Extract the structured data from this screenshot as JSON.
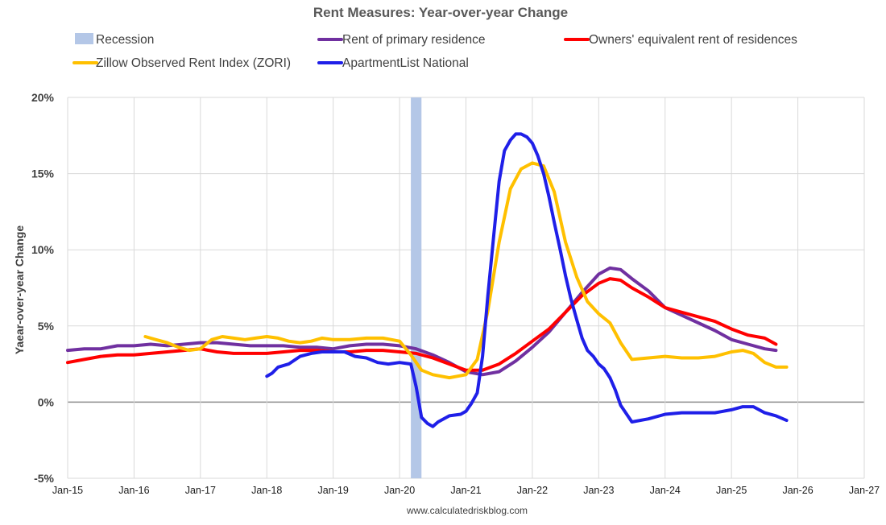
{
  "chart_data": {
    "type": "line",
    "title": "Rent Measures: Year-over-year Change",
    "ylabel": "Yaear-over-year Change",
    "xlabel": "",
    "source": "www.calculatedriskblog.com",
    "ylim": [
      -5,
      20
    ],
    "yticks": [
      20,
      15,
      10,
      5,
      0,
      -5
    ],
    "ytick_labels": [
      "20%",
      "15%",
      "10%",
      "5%",
      "0%",
      "-5%"
    ],
    "x_tick_labels": [
      "Jan-15",
      "Jan-16",
      "Jan-17",
      "Jan-18",
      "Jan-19",
      "Jan-20",
      "Jan-21",
      "Jan-22",
      "Jan-23",
      "Jan-24",
      "Jan-25",
      "Jan-26",
      "Jan-27"
    ],
    "xlim": [
      2015.0,
      2027.0
    ],
    "grid": true,
    "legend_position": "top",
    "recession": {
      "name": "Recession",
      "start": 2020.17,
      "end": 2020.33,
      "color": "#b4c7e7"
    },
    "series": [
      {
        "name": "Rent of primary residence",
        "color": "#7030a0",
        "x": [
          2015.0,
          2015.25,
          2015.5,
          2015.75,
          2016.0,
          2016.25,
          2016.5,
          2016.75,
          2017.0,
          2017.25,
          2017.5,
          2017.75,
          2018.0,
          2018.25,
          2018.5,
          2018.75,
          2019.0,
          2019.25,
          2019.5,
          2019.75,
          2020.0,
          2020.25,
          2020.5,
          2020.75,
          2021.0,
          2021.25,
          2021.5,
          2021.75,
          2022.0,
          2022.25,
          2022.5,
          2022.75,
          2023.0,
          2023.17,
          2023.33,
          2023.5,
          2023.75,
          2024.0,
          2024.25,
          2024.5,
          2024.75,
          2025.0,
          2025.25,
          2025.5,
          2025.67
        ],
        "values": [
          3.4,
          3.5,
          3.5,
          3.7,
          3.7,
          3.8,
          3.7,
          3.8,
          3.9,
          3.9,
          3.8,
          3.7,
          3.7,
          3.7,
          3.6,
          3.6,
          3.5,
          3.7,
          3.8,
          3.8,
          3.7,
          3.5,
          3.1,
          2.6,
          2.0,
          1.8,
          2.0,
          2.7,
          3.6,
          4.6,
          5.9,
          7.2,
          8.4,
          8.8,
          8.7,
          8.1,
          7.3,
          6.2,
          5.7,
          5.2,
          4.7,
          4.1,
          3.8,
          3.5,
          3.4
        ]
      },
      {
        "name": "Owners' equivalent rent of residences",
        "color": "#ff0000",
        "x": [
          2015.0,
          2015.25,
          2015.5,
          2015.75,
          2016.0,
          2016.25,
          2016.5,
          2016.75,
          2017.0,
          2017.25,
          2017.5,
          2017.75,
          2018.0,
          2018.25,
          2018.5,
          2018.75,
          2019.0,
          2019.25,
          2019.5,
          2019.75,
          2020.0,
          2020.25,
          2020.5,
          2020.75,
          2021.0,
          2021.25,
          2021.5,
          2021.75,
          2022.0,
          2022.25,
          2022.5,
          2022.75,
          2023.0,
          2023.17,
          2023.33,
          2023.5,
          2023.75,
          2024.0,
          2024.25,
          2024.5,
          2024.75,
          2025.0,
          2025.25,
          2025.5,
          2025.67
        ],
        "values": [
          2.6,
          2.8,
          3.0,
          3.1,
          3.1,
          3.2,
          3.3,
          3.4,
          3.5,
          3.3,
          3.2,
          3.2,
          3.2,
          3.3,
          3.4,
          3.4,
          3.3,
          3.3,
          3.4,
          3.4,
          3.3,
          3.2,
          2.9,
          2.5,
          2.1,
          2.1,
          2.5,
          3.2,
          4.0,
          4.8,
          5.9,
          7.0,
          7.8,
          8.1,
          8.0,
          7.5,
          6.9,
          6.2,
          5.9,
          5.6,
          5.3,
          4.8,
          4.4,
          4.2,
          3.8
        ]
      },
      {
        "name": "Zillow Observed Rent Index (ZORI)",
        "color": "#ffc000",
        "x": [
          2016.17,
          2016.33,
          2016.5,
          2016.67,
          2016.83,
          2017.0,
          2017.17,
          2017.33,
          2017.5,
          2017.67,
          2017.83,
          2018.0,
          2018.17,
          2018.33,
          2018.5,
          2018.67,
          2018.83,
          2019.0,
          2019.25,
          2019.5,
          2019.75,
          2020.0,
          2020.17,
          2020.33,
          2020.5,
          2020.75,
          2021.0,
          2021.17,
          2021.33,
          2021.5,
          2021.67,
          2021.83,
          2022.0,
          2022.17,
          2022.33,
          2022.5,
          2022.67,
          2022.83,
          2023.0,
          2023.17,
          2023.33,
          2023.5,
          2023.75,
          2024.0,
          2024.25,
          2024.5,
          2024.75,
          2025.0,
          2025.17,
          2025.33,
          2025.5,
          2025.67,
          2025.83
        ],
        "values": [
          4.3,
          4.1,
          3.9,
          3.6,
          3.4,
          3.5,
          4.1,
          4.3,
          4.2,
          4.1,
          4.2,
          4.3,
          4.2,
          4.0,
          3.9,
          4.0,
          4.2,
          4.1,
          4.1,
          4.2,
          4.2,
          4.0,
          3.1,
          2.1,
          1.8,
          1.6,
          1.8,
          2.8,
          6.0,
          10.5,
          14.0,
          15.3,
          15.7,
          15.5,
          13.8,
          10.5,
          8.2,
          6.6,
          5.8,
          5.2,
          3.9,
          2.8,
          2.9,
          3.0,
          2.9,
          2.9,
          3.0,
          3.3,
          3.4,
          3.2,
          2.6,
          2.3,
          2.3
        ]
      },
      {
        "name": "ApartmentList National",
        "color": "#1f1fe8",
        "x": [
          2018.0,
          2018.08,
          2018.17,
          2018.33,
          2018.5,
          2018.67,
          2018.83,
          2019.0,
          2019.17,
          2019.33,
          2019.5,
          2019.67,
          2019.83,
          2020.0,
          2020.17,
          2020.25,
          2020.33,
          2020.42,
          2020.5,
          2020.58,
          2020.75,
          2020.92,
          2021.0,
          2021.08,
          2021.17,
          2021.25,
          2021.33,
          2021.42,
          2021.5,
          2021.58,
          2021.67,
          2021.75,
          2021.83,
          2021.92,
          2022.0,
          2022.08,
          2022.17,
          2022.25,
          2022.33,
          2022.42,
          2022.5,
          2022.58,
          2022.67,
          2022.75,
          2022.83,
          2022.92,
          2023.0,
          2023.08,
          2023.17,
          2023.25,
          2023.33,
          2023.5,
          2023.75,
          2024.0,
          2024.25,
          2024.5,
          2024.75,
          2025.0,
          2025.17,
          2025.33,
          2025.5,
          2025.67,
          2025.83
        ],
        "values": [
          1.7,
          1.9,
          2.3,
          2.5,
          3.0,
          3.2,
          3.3,
          3.3,
          3.3,
          3.0,
          2.9,
          2.6,
          2.5,
          2.6,
          2.5,
          1.0,
          -1.0,
          -1.4,
          -1.6,
          -1.3,
          -0.9,
          -0.8,
          -0.6,
          -0.1,
          0.6,
          3.0,
          7.0,
          11.0,
          14.5,
          16.5,
          17.2,
          17.6,
          17.6,
          17.4,
          17.0,
          16.2,
          15.0,
          13.5,
          11.8,
          10.0,
          8.3,
          6.8,
          5.4,
          4.2,
          3.4,
          3.0,
          2.5,
          2.2,
          1.6,
          0.8,
          -0.2,
          -1.3,
          -1.1,
          -0.8,
          -0.7,
          -0.7,
          -0.7,
          -0.5,
          -0.3,
          -0.3,
          -0.7,
          -0.9,
          -1.2
        ]
      }
    ]
  }
}
